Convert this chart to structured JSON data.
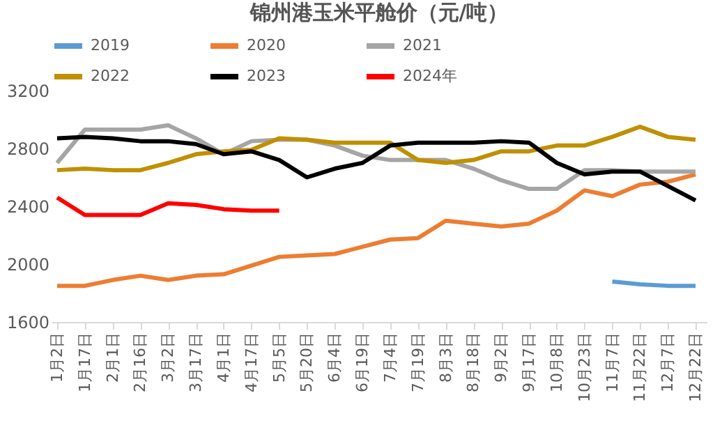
{
  "chart_data": {
    "type": "line",
    "title": "锦州港玉米平舱价（元/吨）",
    "categories": [
      "1月2日",
      "1月17日",
      "2月1日",
      "2月16日",
      "3月2日",
      "3月17日",
      "4月1日",
      "4月17日",
      "5月5日",
      "5月20日",
      "6月4日",
      "6月19日",
      "7月4日",
      "7月19日",
      "8月3日",
      "8月18日",
      "9月2日",
      "9月17日",
      "10月8日",
      "10月23日",
      "11月7日",
      "11月22日",
      "12月7日",
      "12月22日"
    ],
    "series": [
      {
        "name": "2019",
        "color": "#5b9bd5",
        "values": [
          null,
          null,
          null,
          null,
          null,
          null,
          null,
          null,
          null,
          null,
          null,
          null,
          null,
          null,
          null,
          null,
          null,
          null,
          null,
          null,
          1880,
          1860,
          1850,
          1850
        ]
      },
      {
        "name": "2020",
        "color": "#ed7d31",
        "values": [
          1850,
          1850,
          1890,
          1920,
          1890,
          1920,
          1930,
          1990,
          2050,
          2060,
          2070,
          2120,
          2170,
          2180,
          2300,
          2280,
          2260,
          2280,
          2370,
          2510,
          2470,
          2550,
          2570,
          2620
        ]
      },
      {
        "name": "2021",
        "color": "#a5a5a5",
        "values": [
          2700,
          2930,
          2930,
          2930,
          2960,
          2870,
          2760,
          2850,
          2860,
          2860,
          2820,
          2750,
          2720,
          2720,
          2720,
          2660,
          2580,
          2520,
          2520,
          2650,
          2650,
          2640,
          2640,
          2640
        ]
      },
      {
        "name": "2022",
        "color": "#bf9000",
        "values": [
          2650,
          2660,
          2650,
          2650,
          2700,
          2760,
          2780,
          2790,
          2870,
          2860,
          2840,
          2840,
          2840,
          2720,
          2700,
          2720,
          2780,
          2780,
          2820,
          2820,
          2880,
          2950,
          2880,
          2860
        ]
      },
      {
        "name": "2023",
        "color": "#000000",
        "values": [
          2870,
          2880,
          2870,
          2850,
          2850,
          2830,
          2760,
          2780,
          2720,
          2600,
          2660,
          2700,
          2820,
          2840,
          2840,
          2840,
          2850,
          2840,
          2700,
          2620,
          2640,
          2640,
          2540,
          2440
        ]
      },
      {
        "name": "2024年",
        "color": "#ff0000",
        "values": [
          2460,
          2340,
          2340,
          2340,
          2420,
          2410,
          2380,
          2370,
          2370,
          null,
          null,
          null,
          null,
          null,
          null,
          null,
          null,
          null,
          null,
          null,
          null,
          null,
          null,
          null
        ]
      }
    ],
    "ylim": [
      1600,
      3200
    ],
    "yticks": [
      1600,
      2000,
      2400,
      2800,
      3200
    ],
    "grid": false,
    "legend": "top",
    "marker": "none",
    "line_style": "solid"
  }
}
